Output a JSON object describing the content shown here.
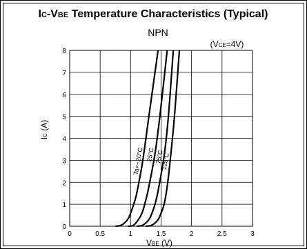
{
  "chart_data": {
    "type": "line",
    "title": {
      "main": "I",
      "main_sub": "C",
      "mid": "-V",
      "mid_sub": "BE",
      "rest": " Temperature Characteristics (Typical)"
    },
    "subtitle": "NPN",
    "condition": {
      "open": "(V",
      "sub": "CE",
      "close": "=4V)"
    },
    "xlabel": {
      "main": "V",
      "sub": "BE",
      "unit": "  (V)"
    },
    "ylabel": {
      "main": "I",
      "sub": "C",
      "unit": "  (A)"
    },
    "xlim": [
      0,
      3
    ],
    "ylim": [
      0,
      8
    ],
    "x_ticks": [
      "0",
      "0.5",
      "1",
      "1.5",
      "2",
      "2.5",
      "3"
    ],
    "y_ticks": [
      "0",
      "1",
      "2",
      "3",
      "4",
      "5",
      "6",
      "7",
      "8"
    ],
    "grid": true,
    "series": [
      {
        "name": "Ta=−20°C",
        "x": [
          0.75,
          0.85,
          0.95,
          1.0,
          1.05,
          1.1,
          1.2,
          1.3,
          1.45
        ],
        "y": [
          0.0,
          0.05,
          0.3,
          0.6,
          1.0,
          1.5,
          3.0,
          5.0,
          8.0
        ]
      },
      {
        "name": "25°C",
        "x": [
          0.95,
          1.05,
          1.15,
          1.2,
          1.25,
          1.3,
          1.4,
          1.48,
          1.6
        ],
        "y": [
          0.0,
          0.05,
          0.4,
          0.7,
          1.2,
          1.8,
          3.3,
          5.0,
          8.0
        ]
      },
      {
        "name": "75°C",
        "x": [
          1.1,
          1.2,
          1.3,
          1.35,
          1.4,
          1.45,
          1.55,
          1.62,
          1.7
        ],
        "y": [
          0.0,
          0.05,
          0.3,
          0.6,
          1.0,
          1.6,
          3.2,
          5.0,
          8.0
        ]
      },
      {
        "name": "125°C",
        "x": [
          1.25,
          1.35,
          1.45,
          1.5,
          1.55,
          1.6,
          1.65,
          1.72,
          1.8
        ],
        "y": [
          0.0,
          0.05,
          0.3,
          0.6,
          1.0,
          1.8,
          3.0,
          5.0,
          8.0
        ]
      }
    ]
  }
}
